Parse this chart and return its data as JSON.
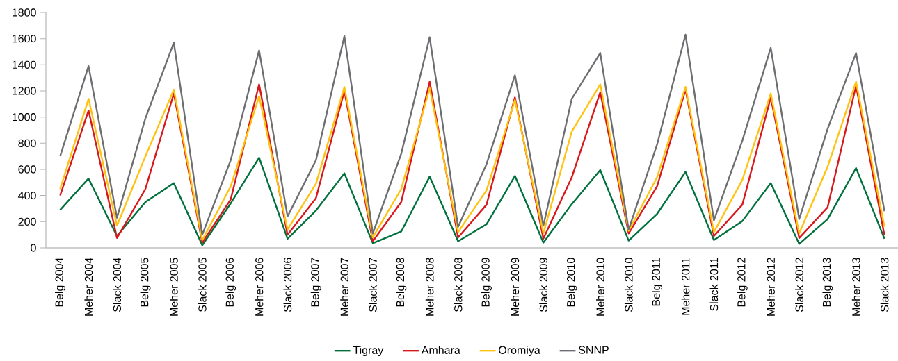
{
  "chart_data": {
    "type": "line",
    "categories": [
      "Belg 2004",
      "Meher 2004",
      "Slack 2004",
      "Belg 2005",
      "Meher 2005",
      "Slack 2005",
      "Belg 2006",
      "Meher 2006",
      "Slack 2006",
      "Belg 2007",
      "Meher 2007",
      "Slack 2007",
      "Belg 2008",
      "Meher 2008",
      "Slack 2008",
      "Belg 2009",
      "Meher 2009",
      "Slack 2009",
      "Belg 2010",
      "Meher 2010",
      "Slack 2010",
      "Belg 2011",
      "Meher 2011",
      "Slack 2011",
      "Belg 2012",
      "Meher 2012",
      "Slack 2012",
      "Belg 2013",
      "Meher 2013",
      "Slack 2013"
    ],
    "series": [
      {
        "name": "Tigray",
        "color": "#00703c",
        "values": [
          290,
          530,
          90,
          350,
          495,
          20,
          340,
          690,
          70,
          285,
          570,
          35,
          125,
          545,
          50,
          180,
          550,
          40,
          335,
          595,
          55,
          260,
          580,
          60,
          205,
          495,
          30,
          220,
          610,
          70
        ]
      },
      {
        "name": "Amhara",
        "color": "#d7191c",
        "values": [
          400,
          1050,
          75,
          450,
          1180,
          40,
          370,
          1250,
          100,
          380,
          1200,
          50,
          350,
          1270,
          80,
          330,
          1150,
          70,
          540,
          1190,
          110,
          470,
          1210,
          90,
          330,
          1150,
          75,
          310,
          1240,
          95
        ]
      },
      {
        "name": "Oromiya",
        "color": "#ffc20e",
        "values": [
          450,
          1140,
          170,
          700,
          1210,
          60,
          470,
          1160,
          140,
          490,
          1230,
          80,
          450,
          1220,
          120,
          440,
          1130,
          110,
          890,
          1250,
          130,
          540,
          1230,
          120,
          520,
          1180,
          110,
          620,
          1270,
          160
        ]
      },
      {
        "name": "SNNP",
        "color": "#6d6e71",
        "values": [
          700,
          1390,
          230,
          990,
          1570,
          100,
          670,
          1510,
          240,
          670,
          1620,
          110,
          720,
          1610,
          160,
          640,
          1320,
          170,
          1140,
          1490,
          140,
          790,
          1630,
          210,
          820,
          1530,
          220,
          910,
          1490,
          280
        ]
      }
    ],
    "ylim": [
      0,
      1800
    ],
    "yticks": [
      0,
      200,
      400,
      600,
      800,
      1000,
      1200,
      1400,
      1600,
      1800
    ],
    "grid": false,
    "legend": "bottom",
    "marker": "none",
    "line_style": "solid"
  }
}
